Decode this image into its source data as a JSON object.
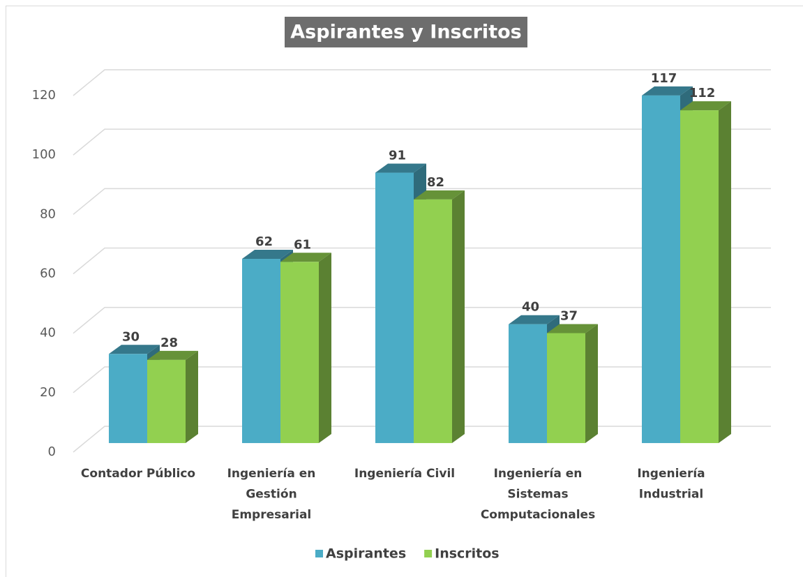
{
  "chart_data": {
    "type": "bar3d",
    "title": "Aspirantes y Inscritos",
    "categories": [
      "Contador Público",
      "Ingeniería en Gestión Empresarial",
      "Ingeniería Civil",
      "Ingeniería en Sistemas Computacionales",
      "Ingeniería Industrial"
    ],
    "series": [
      {
        "name": "Aspirantes",
        "color": "#4bacc6",
        "values": [
          30,
          62,
          91,
          40,
          117
        ]
      },
      {
        "name": "Inscritos",
        "color": "#92d050",
        "values": [
          28,
          61,
          82,
          37,
          112
        ]
      }
    ],
    "ylim": [
      0,
      120
    ],
    "yticks": [
      0,
      20,
      40,
      60,
      80,
      100,
      120
    ],
    "grid": true,
    "legend": "bottom"
  }
}
